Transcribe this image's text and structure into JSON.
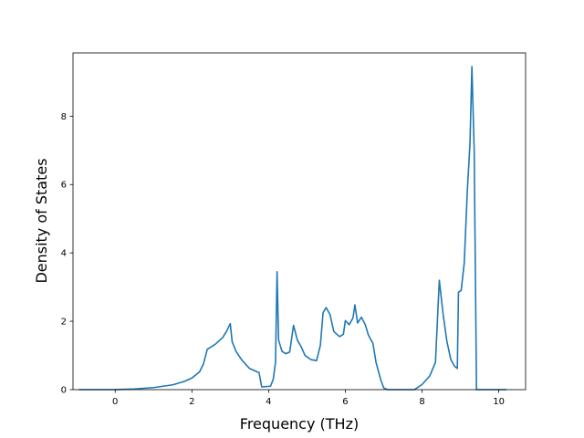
{
  "chart_data": {
    "type": "line",
    "title": "",
    "xlabel": "Frequency (THz)",
    "ylabel": "Density of States",
    "xlim": [
      -1.1,
      10.7
    ],
    "ylim": [
      0,
      9.85
    ],
    "xticks": [
      0,
      2,
      4,
      6,
      8,
      10
    ],
    "yticks": [
      0,
      2,
      4,
      6,
      8
    ],
    "grid": false,
    "legend": "none",
    "series": [
      {
        "name": "",
        "color": "#1f77b4",
        "points": [
          [
            -0.95,
            0.0
          ],
          [
            -0.5,
            0.0
          ],
          [
            0.0,
            0.0
          ],
          [
            0.5,
            0.02
          ],
          [
            1.0,
            0.06
          ],
          [
            1.5,
            0.14
          ],
          [
            1.8,
            0.24
          ],
          [
            2.0,
            0.34
          ],
          [
            2.2,
            0.52
          ],
          [
            2.3,
            0.75
          ],
          [
            2.4,
            1.18
          ],
          [
            2.6,
            1.32
          ],
          [
            2.8,
            1.52
          ],
          [
            2.9,
            1.7
          ],
          [
            3.0,
            1.93
          ],
          [
            3.05,
            1.4
          ],
          [
            3.15,
            1.12
          ],
          [
            3.3,
            0.87
          ],
          [
            3.5,
            0.62
          ],
          [
            3.7,
            0.52
          ],
          [
            3.75,
            0.5
          ],
          [
            3.82,
            0.08
          ],
          [
            4.05,
            0.1
          ],
          [
            4.12,
            0.3
          ],
          [
            4.18,
            0.8
          ],
          [
            4.22,
            3.45
          ],
          [
            4.26,
            1.45
          ],
          [
            4.35,
            1.12
          ],
          [
            4.45,
            1.05
          ],
          [
            4.55,
            1.1
          ],
          [
            4.65,
            1.88
          ],
          [
            4.75,
            1.45
          ],
          [
            4.85,
            1.25
          ],
          [
            4.95,
            1.0
          ],
          [
            5.1,
            0.88
          ],
          [
            5.25,
            0.85
          ],
          [
            5.35,
            1.3
          ],
          [
            5.42,
            2.25
          ],
          [
            5.5,
            2.4
          ],
          [
            5.6,
            2.2
          ],
          [
            5.7,
            1.7
          ],
          [
            5.85,
            1.55
          ],
          [
            5.95,
            1.62
          ],
          [
            6.0,
            2.02
          ],
          [
            6.1,
            1.9
          ],
          [
            6.2,
            2.1
          ],
          [
            6.25,
            2.48
          ],
          [
            6.32,
            1.95
          ],
          [
            6.42,
            2.12
          ],
          [
            6.52,
            1.9
          ],
          [
            6.6,
            1.6
          ],
          [
            6.72,
            1.35
          ],
          [
            6.8,
            0.8
          ],
          [
            6.92,
            0.3
          ],
          [
            7.0,
            0.05
          ],
          [
            7.1,
            0.0
          ],
          [
            7.8,
            0.0
          ],
          [
            8.0,
            0.15
          ],
          [
            8.2,
            0.4
          ],
          [
            8.35,
            0.8
          ],
          [
            8.45,
            3.2
          ],
          [
            8.55,
            2.2
          ],
          [
            8.65,
            1.4
          ],
          [
            8.75,
            0.88
          ],
          [
            8.85,
            0.68
          ],
          [
            8.92,
            0.62
          ],
          [
            8.95,
            2.85
          ],
          [
            9.02,
            2.9
          ],
          [
            9.1,
            3.7
          ],
          [
            9.18,
            5.8
          ],
          [
            9.25,
            7.2
          ],
          [
            9.3,
            9.45
          ],
          [
            9.36,
            7.0
          ],
          [
            9.42,
            0.0
          ],
          [
            10.2,
            0.0
          ]
        ]
      }
    ]
  }
}
